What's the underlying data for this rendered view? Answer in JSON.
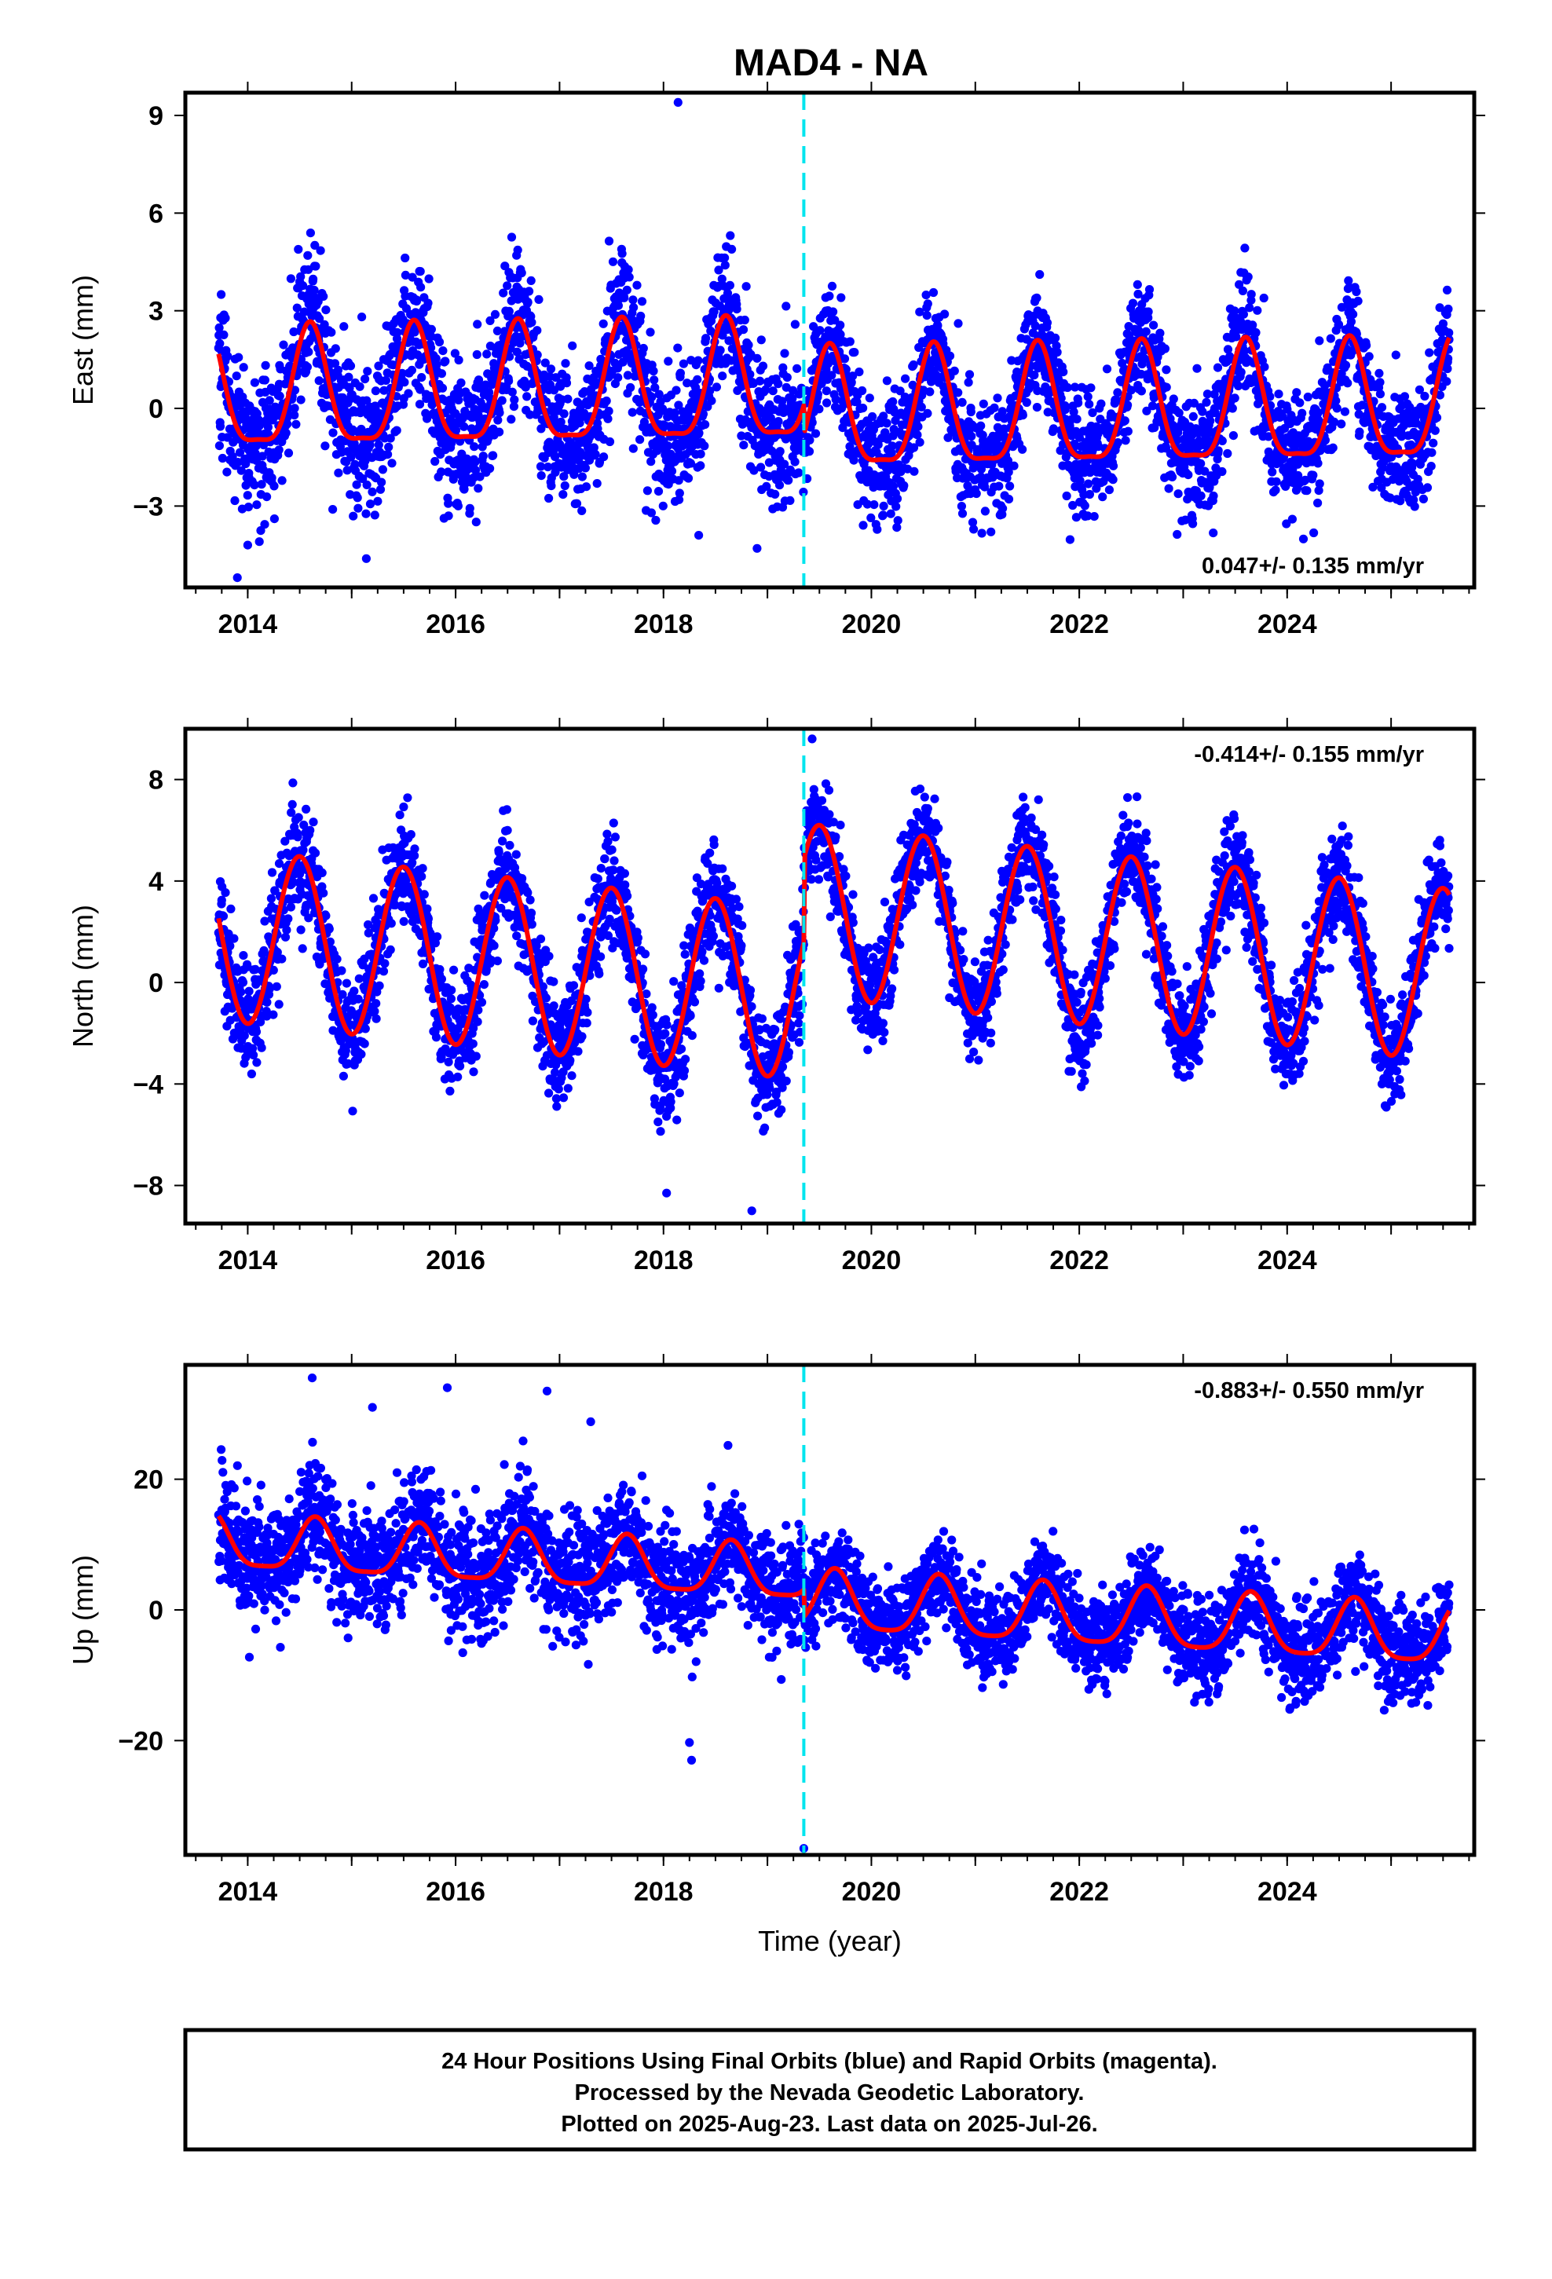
{
  "title": "MAD4 - NA",
  "colors": {
    "final_orbits": "#0000ff",
    "model_fit": "#ff0000",
    "equipment_change": "#00e5ee",
    "frame": "#000000"
  },
  "footer": {
    "lines": [
      "24 Hour Positions Using Final Orbits (blue) and Rapid Orbits (magenta).",
      "Processed by the Nevada Geodetic Laboratory.",
      "Plotted on 2025-Aug-23. Last data on 2025-Jul-26."
    ]
  },
  "chart_data": [
    {
      "type": "scatter",
      "panel": "east",
      "ylabel": "East (mm)",
      "xlabel": "",
      "xlim": [
        2013.4,
        2025.8
      ],
      "ylim": [
        -5.5,
        9.7
      ],
      "x_ticks": [
        2014,
        2016,
        2018,
        2020,
        2022,
        2024
      ],
      "y_ticks": [
        -3,
        0,
        3,
        6,
        9
      ],
      "y_tick_labels": [
        "−3",
        "0",
        "3",
        "6",
        "9"
      ],
      "rate_annotation": "0.047+/- 0.135 mm/yr",
      "rate_position": "bottom-right",
      "equipment_change_year": 2019.35,
      "data_span": [
        2013.72,
        2025.56
      ],
      "model": {
        "description": "seasonal fit",
        "offset_before": 0.6,
        "offset_after": -0.3,
        "trend_mm_per_yr": 0.047,
        "annual_amp_before": 1.8,
        "annual_amp_after": 1.8,
        "annual_peak_phase": 0.6,
        "semiannual_amp": 0.5,
        "scatter_sigma": 1.1,
        "scatter_sigma_after": 0.9
      },
      "outliers": [
        [
          2018.14,
          9.4
        ],
        [
          2013.9,
          -5.2
        ],
        [
          2014.0,
          -4.2
        ],
        [
          2018.9,
          -4.3
        ]
      ],
      "grid": false
    },
    {
      "type": "scatter",
      "panel": "north",
      "ylabel": "North (mm)",
      "xlabel": "",
      "xlim": [
        2013.4,
        2025.8
      ],
      "ylim": [
        -9.5,
        10.0
      ],
      "x_ticks": [
        2014,
        2016,
        2018,
        2020,
        2022,
        2024
      ],
      "y_ticks": [
        -8,
        -4,
        0,
        4,
        8
      ],
      "y_tick_labels": [
        "−8",
        "−4",
        "0",
        "4",
        "8"
      ],
      "rate_annotation": "-0.414+/- 0.155 mm/yr",
      "rate_position": "top-right",
      "equipment_change_year": 2019.35,
      "data_span": [
        2013.72,
        2025.56
      ],
      "model": {
        "description": "seasonal fit with offset at equipment change",
        "offset_before": -0.5,
        "offset_after": 2.8,
        "trend_mm_per_yr": -0.414,
        "annual_amp_before": 3.4,
        "annual_amp_after": 3.4,
        "annual_peak_phase": 0.5,
        "semiannual_amp": 0.0,
        "scatter_sigma": 1.1,
        "scatter_sigma_after": 1.0
      },
      "outliers": [
        [
          2019.43,
          9.6
        ],
        [
          2018.85,
          -9.0
        ],
        [
          2018.03,
          -8.3
        ]
      ],
      "grid": false
    },
    {
      "type": "scatter",
      "panel": "up",
      "ylabel": "Up (mm)",
      "xlabel": "Time (year)",
      "xlim": [
        2013.4,
        2025.8
      ],
      "ylim": [
        -37.5,
        37.5
      ],
      "x_ticks": [
        2014,
        2016,
        2018,
        2020,
        2022,
        2024
      ],
      "y_ticks": [
        -20,
        0,
        20
      ],
      "y_tick_labels": [
        "−20",
        "0",
        "20"
      ],
      "rate_annotation": "-0.883+/- 0.550 mm/yr",
      "rate_position": "top-right",
      "equipment_change_year": 2019.35,
      "data_span": [
        2013.72,
        2025.56
      ],
      "model": {
        "description": "seasonal fit",
        "offset_before": 5.0,
        "offset_after": 1.0,
        "trend_mm_per_yr": -0.883,
        "annual_amp_before": 4.0,
        "annual_amp_after": 4.5,
        "annual_peak_phase": 0.65,
        "semiannual_amp": 1.0,
        "scatter_sigma": 4.5,
        "scatter_sigma_after": 3.5
      },
      "outliers": [
        [
          2014.62,
          35.5
        ],
        [
          2015.92,
          34.0
        ],
        [
          2016.88,
          33.5
        ],
        [
          2018.27,
          -23.0
        ],
        [
          2018.25,
          -20.3
        ],
        [
          2019.35,
          -36.5
        ],
        [
          2015.2,
          31.0
        ],
        [
          2017.3,
          28.8
        ]
      ],
      "grid": false
    }
  ]
}
